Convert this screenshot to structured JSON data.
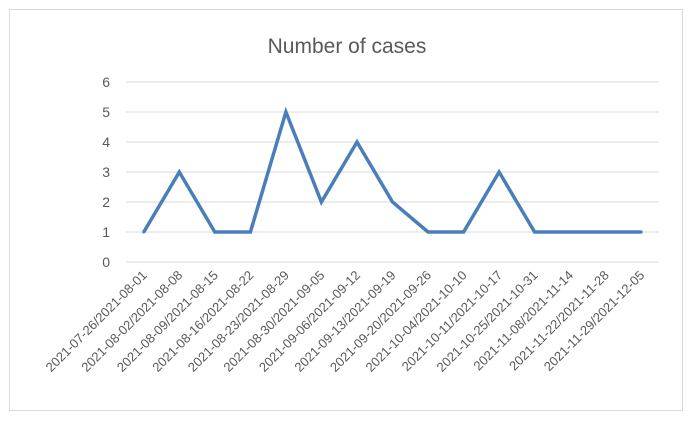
{
  "chart_data": {
    "type": "line",
    "title": "Number of cases",
    "xlabel": "",
    "ylabel": "",
    "ylim": [
      0,
      6
    ],
    "yticks": [
      "0",
      "1",
      "2",
      "3",
      "4",
      "5",
      "6"
    ],
    "grid": true,
    "legend": "none",
    "line_color": "#4a7ebb",
    "categories": [
      "2021-07-26/2021-08-01",
      "2021-08-02/2021-08-08",
      "2021-08-09/2021-08-15",
      "2021-08-16/2021-08-22",
      "2021-08-23/2021-08-29",
      "2021-08-30/2021-09-05",
      "2021-09-06/2021-09-12",
      "2021-09-13/2021-09-19",
      "2021-09-20/2021-09-26",
      "2021-10-04/2021-10-10",
      "2021-10-11/2021-10-17",
      "2021-10-25/2021-10-31",
      "2021-11-08/2021-11-14",
      "2021-11-22/2021-11-28",
      "2021-11-29/2021-12-05"
    ],
    "series": [
      {
        "values": [
          1,
          3,
          1,
          1,
          5,
          2,
          4,
          2,
          1,
          1,
          3,
          1,
          1,
          1,
          1
        ]
      }
    ]
  }
}
